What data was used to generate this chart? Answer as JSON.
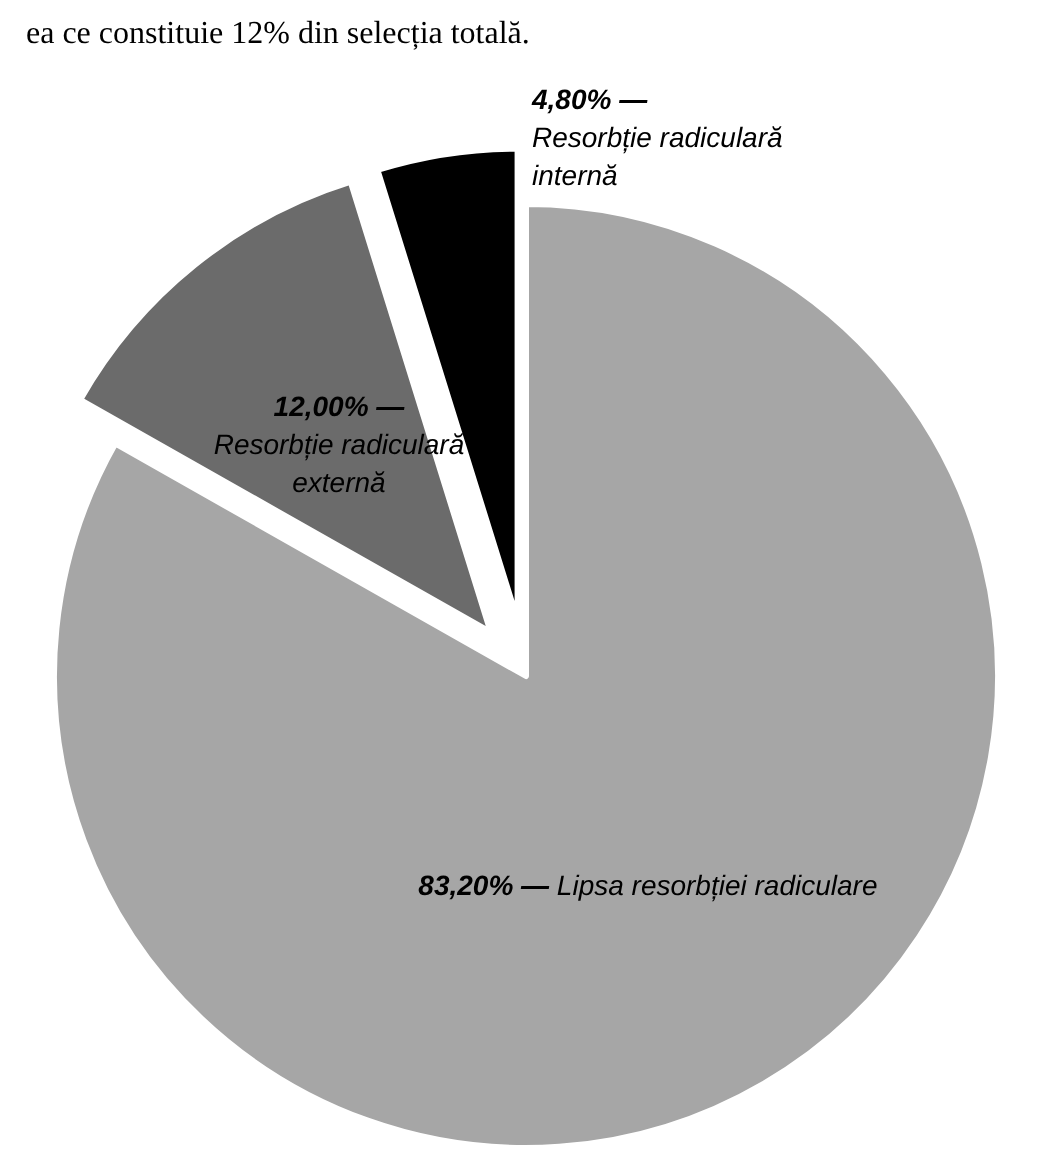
{
  "chart_data": {
    "type": "pie",
    "categories": [
      "Lipsa resorbției radiculare",
      "Resorbție radiculară externă",
      "Resorbție radiculară internă"
    ],
    "values": [
      83.2,
      12.0,
      4.8
    ],
    "value_labels": [
      "83,20% —",
      "12,00% —",
      "4,80% —"
    ],
    "colors": [
      "#a6a6a6",
      "#6b6b6b",
      "#000000"
    ],
    "annotations": [
      "ea ce constituie 12% din selecția totală."
    ],
    "legend": false
  }
}
